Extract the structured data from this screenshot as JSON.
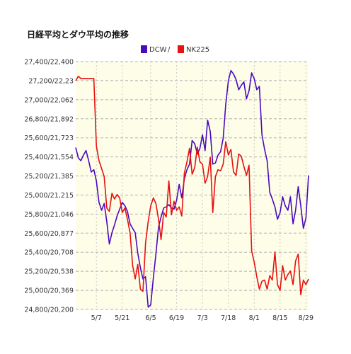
{
  "chart_data": {
    "type": "line",
    "title": "日経平均とダウ平均の推移",
    "legend": [
      {
        "name": "DCW",
        "color": "#4b0ac0"
      },
      {
        "name": "NK225",
        "color": "#e81010"
      }
    ],
    "legend_separator": "/",
    "grid": true,
    "legend_position": "top",
    "plot_background": "#fdfde8",
    "y_ticks": [
      "27,400/22,400",
      "27,200/22,23",
      "27,000/22,062",
      "26,800/21,892",
      "25,600/21,723",
      "25,400/21,554",
      "25,200/21,385",
      "25,000/21,215",
      "25,800/21,046",
      "25,600/20,877",
      "25,400/20,708",
      "25,200/20,538",
      "25,000/20,369",
      "24,800/20,200"
    ],
    "x_ticks": [
      "5/7",
      "5/21",
      "6/5",
      "6/19",
      "7/3",
      "7/18",
      "8/1",
      "8/15",
      "8/29"
    ],
    "x_tick_index": [
      8,
      18,
      29,
      39,
      49,
      59,
      69,
      79,
      89
    ],
    "x_count": 91,
    "y_scale": {
      "left_label_top": 27400,
      "left_label_bottom": 24800,
      "nk_top": 22400,
      "nk_bottom": 20200
    },
    "series": [
      {
        "name": "DCW",
        "color": "#4b0ac0",
        "values_nk": [
          21637,
          21545,
          21520,
          21570,
          21610,
          21520,
          21420,
          21440,
          21340,
          21150,
          21080,
          21140,
          20980,
          20780,
          20880,
          20950,
          21030,
          21090,
          21150,
          21120,
          21070,
          20960,
          20920,
          20880,
          20700,
          20570,
          20470,
          20490,
          20220,
          20240,
          20480,
          20690,
          20930,
          21020,
          21100,
          21110,
          21130,
          21100,
          21090,
          21170,
          21310,
          21190,
          21360,
          21440,
          21490,
          21700,
          21670,
          21580,
          21630,
          21750,
          21610,
          21880,
          21780,
          21490,
          21500,
          21570,
          21600,
          21720,
          22020,
          22230,
          22320,
          22290,
          22240,
          22150,
          22190,
          22220,
          22070,
          22140,
          22300,
          22250,
          22150,
          22180,
          21750,
          21620,
          21520,
          21240,
          21180,
          21110,
          21000,
          21060,
          21200,
          21120,
          21080,
          21200,
          20960,
          21080,
          21290,
          21120,
          20920,
          21010,
          21390
        ]
      },
      {
        "name": "NK225",
        "color": "#e81010",
        "values_nk": [
          22230,
          22270,
          22250,
          22250,
          22250,
          22250,
          22250,
          22250,
          21650,
          21520,
          21450,
          21380,
          21100,
          21070,
          21230,
          21180,
          21220,
          21190,
          21060,
          21100,
          21000,
          20880,
          20590,
          20470,
          20600,
          20380,
          20360,
          20790,
          20980,
          21120,
          21190,
          21140,
          21000,
          20820,
          21060,
          21020,
          21340,
          21040,
          21160,
          21080,
          21110,
          21030,
          21410,
          21510,
          21630,
          21400,
          21460,
          21640,
          21510,
          21490,
          21320,
          21380,
          21550,
          21060,
          21380,
          21440,
          21430,
          21490,
          21690,
          21570,
          21620,
          21420,
          21390,
          21580,
          21560,
          21470,
          21390,
          21480,
          20720,
          20620,
          20490,
          20380,
          20450,
          20460,
          20380,
          20500,
          20460,
          20710,
          20420,
          20370,
          20590,
          20460,
          20510,
          20540,
          20420,
          20630,
          20690,
          20330,
          20460,
          20420,
          20470
        ]
      }
    ]
  }
}
